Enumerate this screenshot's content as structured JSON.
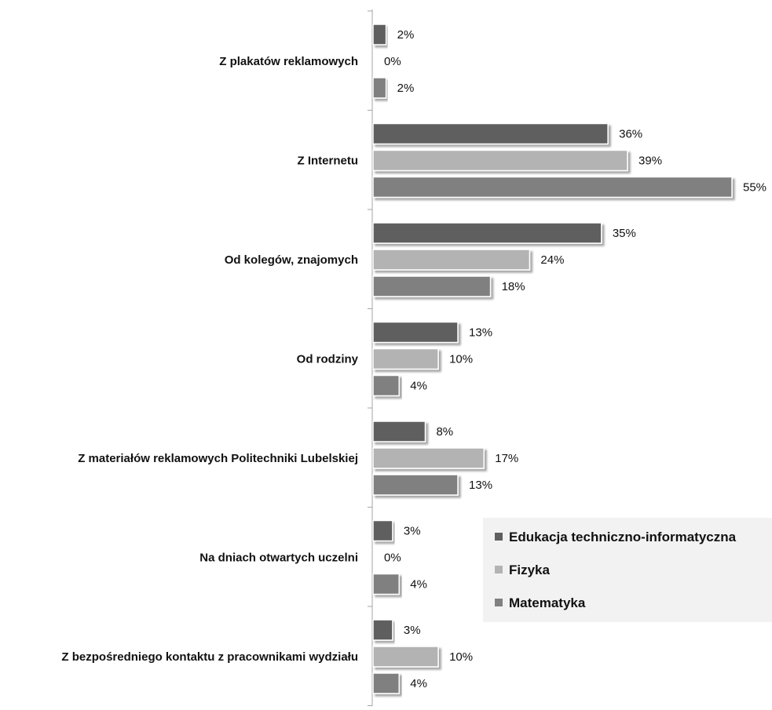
{
  "chart_data": {
    "type": "bar",
    "orientation": "horizontal",
    "categories": [
      "Z plakatów reklamowych",
      "Z Internetu",
      "Od kolegów, znajomych",
      "Od rodziny",
      "Z materiałów reklamowych Politechniki Lubelskiej",
      "Na dniach otwartych uczelni",
      "Z bezpośredniego kontaktu z pracownikami wydziału"
    ],
    "series": [
      {
        "name": "Edukacja techniczno-informatyczna",
        "color": "#5f5f5f",
        "values": [
          2,
          36,
          35,
          13,
          8,
          3,
          3
        ],
        "labels": [
          "2%",
          "36%",
          "35%",
          "13%",
          "8%",
          "3%",
          "3%"
        ]
      },
      {
        "name": "Fizyka",
        "color": "#b3b3b3",
        "values": [
          0,
          39,
          24,
          10,
          17,
          0,
          10
        ],
        "labels": [
          "0%",
          "39%",
          "24%",
          "10%",
          "17%",
          "0%",
          "10%"
        ]
      },
      {
        "name": "Matematyka",
        "color": "#808080",
        "values": [
          2,
          55,
          18,
          4,
          13,
          4,
          4
        ],
        "labels": [
          "2%",
          "55%",
          "18%",
          "4%",
          "13%",
          "4%",
          "4%"
        ]
      }
    ],
    "unit": "%",
    "xlim": [
      0,
      55
    ],
    "grid": false,
    "legend": {
      "position": "bottom-right",
      "background": "#f2f2f2"
    }
  }
}
